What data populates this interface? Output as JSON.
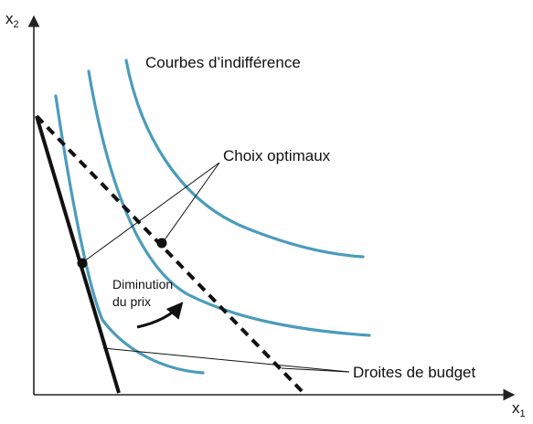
{
  "axes": {
    "y_label": "x",
    "y_sub": "2",
    "x_label": "x",
    "x_sub": "1"
  },
  "labels": {
    "indifference_curves": "Courbes d’indifférence",
    "optimal_choices": "Choix optimaux",
    "price_decrease_line1": "Diminution",
    "price_decrease_line2": "du prix",
    "budget_lines": "Droites de budget"
  },
  "colors": {
    "indifference_curve": "#4a9cbc",
    "budget_solid": "#111111",
    "budget_dashed": "#111111",
    "axis": "#222222"
  },
  "elements": {
    "indifference_curves_count": 3,
    "optimal_points_count": 2,
    "budget_lines": [
      "solid (initial)",
      "dashed (after price decrease)"
    ]
  }
}
